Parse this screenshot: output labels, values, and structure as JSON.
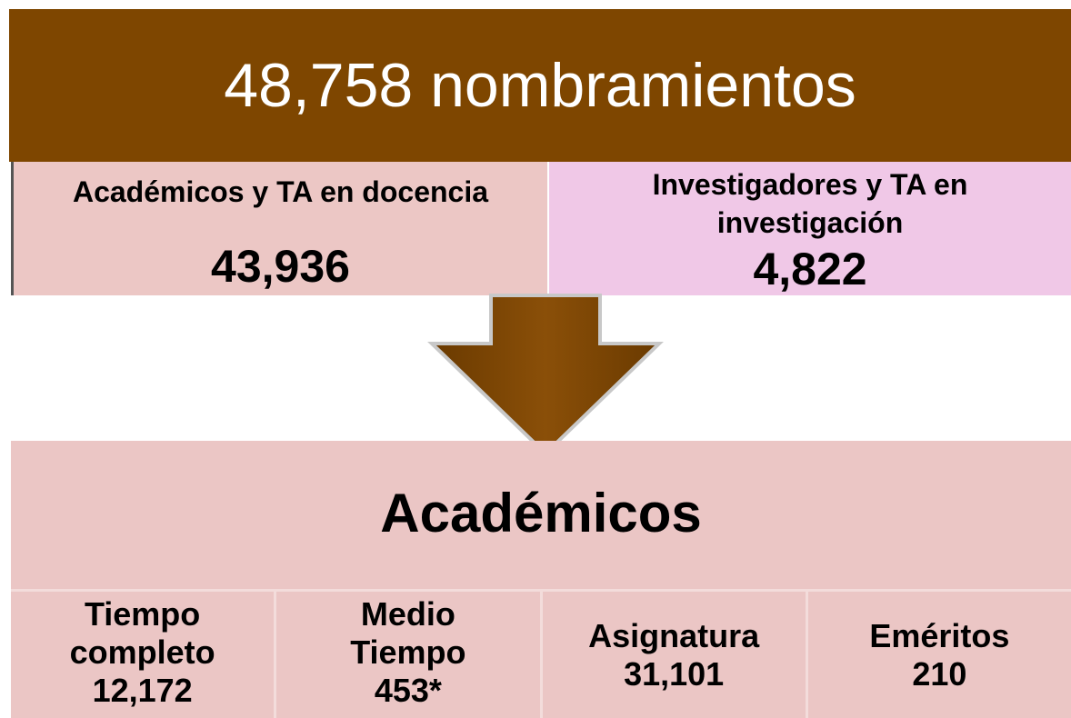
{
  "header": {
    "title": "48,758 nombramientos"
  },
  "groups": [
    {
      "label_lines": [
        "Académicos y TA en docencia"
      ],
      "value": "43,936"
    },
    {
      "label_lines": [
        "Investigadores y TA en",
        "investigación"
      ],
      "value": "4,822"
    }
  ],
  "section": {
    "title": "Académicos"
  },
  "cells": [
    {
      "lines": [
        "Tiempo",
        "completo",
        "12,172"
      ]
    },
    {
      "lines": [
        "Medio",
        "Tiempo",
        "453*"
      ]
    },
    {
      "lines": [
        "Asignatura",
        "31,101"
      ]
    },
    {
      "lines": [
        "Eméritos",
        "210"
      ]
    }
  ]
}
